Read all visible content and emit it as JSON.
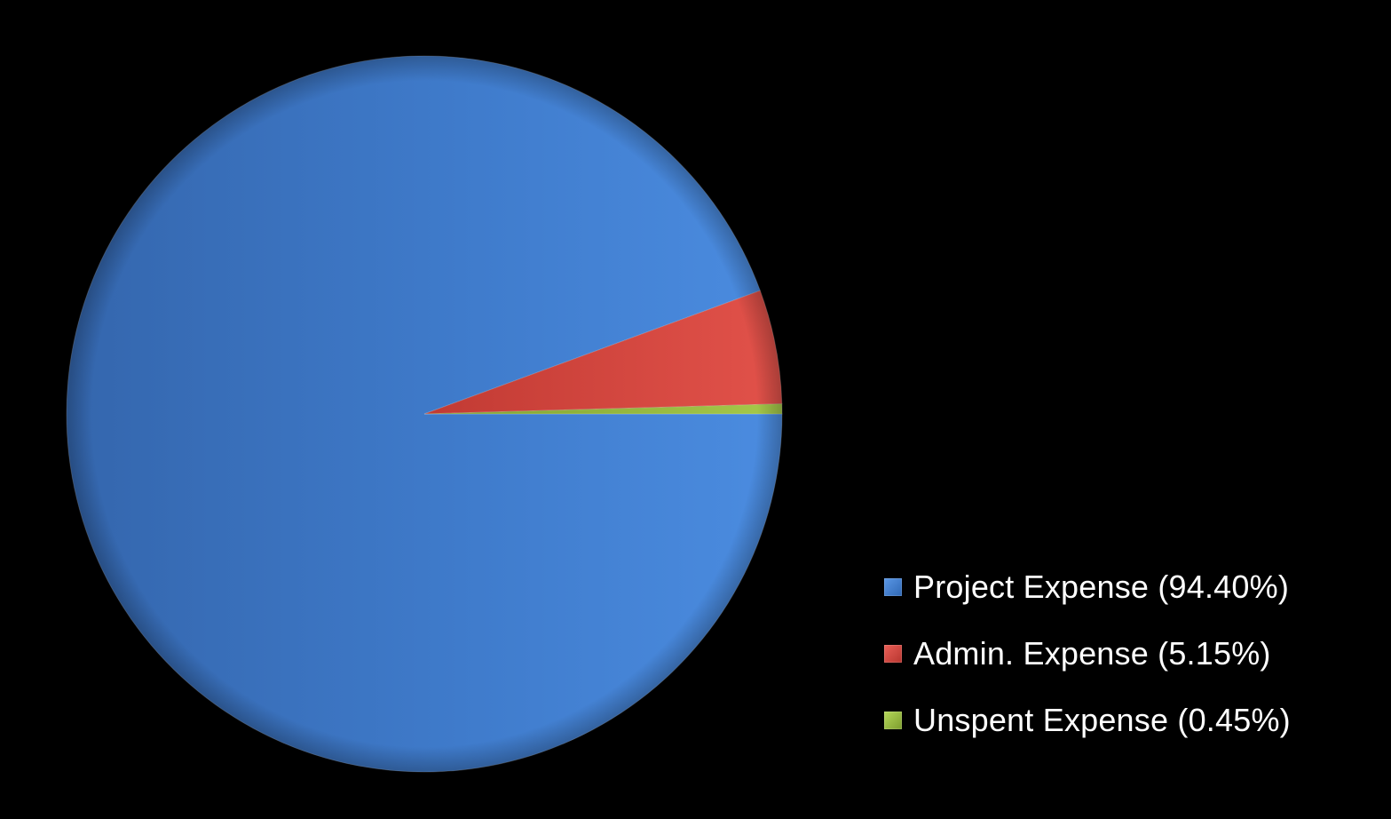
{
  "chart_data": {
    "type": "pie",
    "title": "",
    "legend_position": "bottom-right",
    "series": [
      {
        "name": "",
        "values": [
          94.4,
          5.15,
          0.45
        ]
      }
    ],
    "categories": [
      "Project Expense",
      "Admin. Expense",
      "Unspent Expense"
    ],
    "slices": [
      {
        "label": "Project Expense",
        "value": 94.4,
        "color": "#3f79c9"
      },
      {
        "label": "Admin. Expense",
        "value": 5.15,
        "color": "#d9443b"
      },
      {
        "label": "Unspent Expense",
        "value": 0.45,
        "color": "#93b63a"
      }
    ],
    "legend": {
      "items": [
        "Project Expense (94.40%)",
        "Admin. Expense (5.15%)",
        "Unspent Expense (0.45%)"
      ]
    }
  }
}
